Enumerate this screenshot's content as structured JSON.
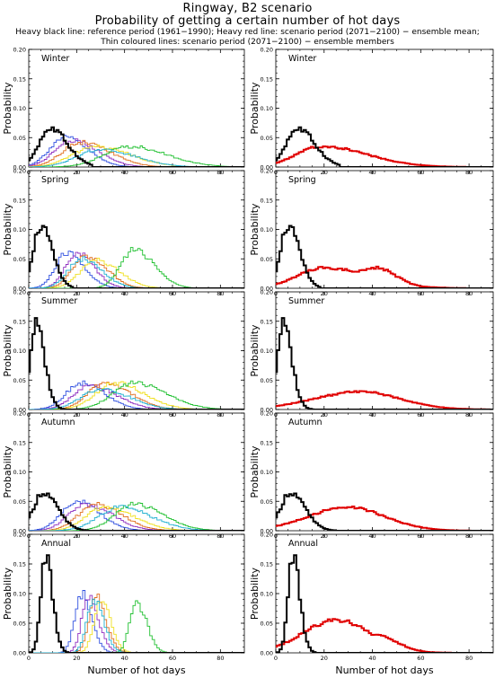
{
  "header": {
    "title_line1": "Ringway, B2 scenario",
    "title_line2": "Probability of getting a certain number of hot days",
    "note_line1": "Heavy black line: reference period (1961−1990); Heavy red line: scenario period (2071−2100) − ensemble mean;",
    "note_line2": "Thin coloured lines: scenario period (2071−2100) − ensemble members"
  },
  "axes": {
    "xlabel": "Number of hot days",
    "ylabel": "Probability",
    "xticks": [
      0,
      20,
      40,
      60,
      80
    ],
    "yticks": [
      "0.00",
      "0.05",
      "0.10",
      "0.15",
      "0.20"
    ],
    "xlim": [
      0,
      90
    ],
    "ylim": [
      0,
      0.2
    ]
  },
  "colors": {
    "reference": "#000000",
    "ensemble_mean": "#e00000",
    "members": [
      "#3050e0",
      "#9030c0",
      "#e07020",
      "#f0e020",
      "#20c030",
      "#20b0d0",
      "#e03080",
      "#606060"
    ]
  },
  "chart_data": [
    {
      "type": "line",
      "title": "Winter",
      "ylim": [
        0,
        0.2
      ],
      "xlim": [
        0,
        90
      ],
      "reference": {
        "peak": 9,
        "peak_p": 0.065,
        "width": 6,
        "end": 26
      },
      "ensemble_mean": {
        "peak": 19,
        "peak_p": 0.035,
        "tail": 68
      },
      "members": [
        {
          "peak": 15,
          "peak_p": 0.05,
          "width": 8
        },
        {
          "peak": 18,
          "peak_p": 0.045,
          "width": 9
        },
        {
          "peak": 22,
          "peak_p": 0.042,
          "width": 10
        },
        {
          "peak": 28,
          "peak_p": 0.035,
          "width": 12
        },
        {
          "peak": 42,
          "peak_p": 0.035,
          "width": 13
        },
        {
          "peak": 30,
          "peak_p": 0.03,
          "width": 12
        }
      ]
    },
    {
      "type": "line",
      "title": "Spring",
      "ylim": [
        0,
        0.2
      ],
      "xlim": [
        0,
        90
      ],
      "reference": {
        "peak": 5,
        "peak_p": 0.105,
        "width": 4,
        "end": 18
      },
      "ensemble_mean": {
        "peak": 20,
        "peak_p": 0.035,
        "tail": 68,
        "second_peak": 42,
        "second_p": 0.028
      },
      "members": [
        {
          "peak": 16,
          "peak_p": 0.06,
          "width": 6
        },
        {
          "peak": 20,
          "peak_p": 0.06,
          "width": 6
        },
        {
          "peak": 24,
          "peak_p": 0.055,
          "width": 7
        },
        {
          "peak": 28,
          "peak_p": 0.048,
          "width": 8
        },
        {
          "peak": 44,
          "peak_p": 0.065,
          "width": 7
        },
        {
          "peak": 22,
          "peak_p": 0.05,
          "width": 7
        }
      ]
    },
    {
      "type": "line",
      "title": "Summer",
      "ylim": [
        0,
        0.2
      ],
      "xlim": [
        0,
        90
      ],
      "reference": {
        "peak": 3,
        "peak_p": 0.145,
        "width": 3,
        "end": 15
      },
      "ensemble_mean": {
        "peak": 35,
        "peak_p": 0.03,
        "tail": 78
      },
      "members": [
        {
          "peak": 22,
          "peak_p": 0.045,
          "width": 8
        },
        {
          "peak": 26,
          "peak_p": 0.04,
          "width": 9
        },
        {
          "peak": 32,
          "peak_p": 0.045,
          "width": 9
        },
        {
          "peak": 36,
          "peak_p": 0.045,
          "width": 10
        },
        {
          "peak": 44,
          "peak_p": 0.045,
          "width": 11
        },
        {
          "peak": 30,
          "peak_p": 0.035,
          "width": 10
        }
      ]
    },
    {
      "type": "line",
      "title": "Autumn",
      "ylim": [
        0,
        0.2
      ],
      "xlim": [
        0,
        90
      ],
      "reference": {
        "peak": 6,
        "peak_p": 0.065,
        "width": 5,
        "end": 24
      },
      "ensemble_mean": {
        "peak": 30,
        "peak_p": 0.04,
        "tail": 70
      },
      "members": [
        {
          "peak": 20,
          "peak_p": 0.05,
          "width": 8
        },
        {
          "peak": 24,
          "peak_p": 0.045,
          "width": 9
        },
        {
          "peak": 28,
          "peak_p": 0.045,
          "width": 9
        },
        {
          "peak": 32,
          "peak_p": 0.04,
          "width": 10
        },
        {
          "peak": 44,
          "peak_p": 0.045,
          "width": 10
        },
        {
          "peak": 38,
          "peak_p": 0.04,
          "width": 11
        }
      ]
    },
    {
      "type": "line",
      "title": "Annual",
      "ylim": [
        0,
        0.2
      ],
      "xlim": [
        0,
        90
      ],
      "reference": {
        "peak": 7,
        "peak_p": 0.165,
        "width": 2.4,
        "end": 16
      },
      "ensemble_mean": {
        "peak": 25,
        "peak_p": 0.055,
        "tail": 62,
        "second_peak": 43,
        "second_p": 0.02
      },
      "members": [
        {
          "peak": 22,
          "peak_p": 0.1,
          "width": 3.5
        },
        {
          "peak": 25,
          "peak_p": 0.095,
          "width": 3.5
        },
        {
          "peak": 28,
          "peak_p": 0.095,
          "width": 3.5
        },
        {
          "peak": 30,
          "peak_p": 0.09,
          "width": 3.5
        },
        {
          "peak": 45,
          "peak_p": 0.085,
          "width": 3.5
        },
        {
          "peak": 27,
          "peak_p": 0.09,
          "width": 3.5
        }
      ]
    }
  ]
}
